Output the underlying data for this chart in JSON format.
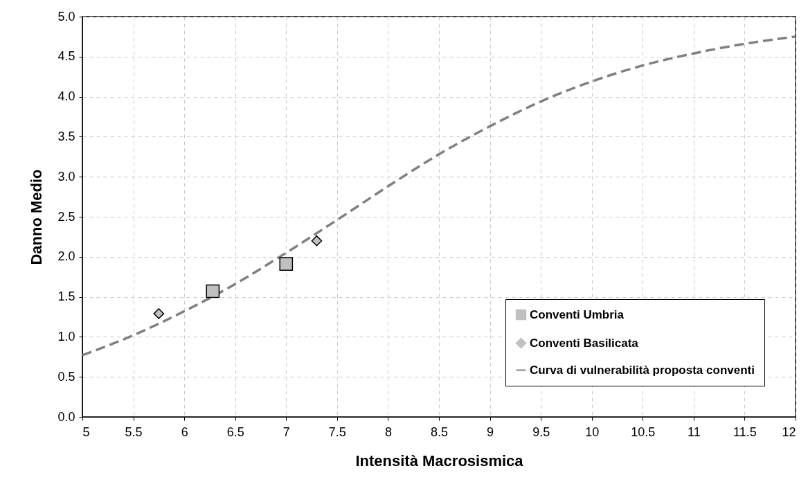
{
  "chart_data": {
    "type": "scatter",
    "xlabel": "Intensità Macrosismica",
    "ylabel": "Danno Medio",
    "xlim": [
      5,
      12
    ],
    "xticks": [
      5,
      5.5,
      6,
      6.5,
      7,
      7.5,
      8,
      8.5,
      9,
      9.5,
      10,
      10.5,
      11,
      11.5,
      12
    ],
    "ylim": [
      0,
      5
    ],
    "yticks": [
      {
        "value": 0,
        "label": "0.0"
      },
      0.5,
      {
        "value": 1,
        "label": "1.0"
      },
      1.5,
      {
        "value": 2,
        "label": "2.0"
      },
      2.5,
      {
        "value": 3,
        "label": "3.0"
      },
      3.5,
      {
        "value": 4,
        "label": "4.0"
      },
      4.5,
      {
        "value": 5,
        "label": "5.0"
      }
    ],
    "grid": true,
    "legend": "bottom right",
    "series": [
      {
        "name": "Conventi Umbria",
        "type": "scatter",
        "marker": "square",
        "color": "#c0c0c0",
        "x": [
          6.28,
          7.0
        ],
        "values": [
          1.57,
          1.91
        ]
      },
      {
        "name": "Conventi Basilicata",
        "type": "scatter",
        "marker": "diamond",
        "color": "#c0c0c0",
        "x": [
          5.75,
          7.3
        ],
        "values": [
          1.29,
          2.2
        ]
      },
      {
        "name": "Curva di vulnerabilità proposta conventi",
        "type": "line",
        "line_style": "dashed",
        "marker": "none",
        "color": "#808080",
        "x": [
          5,
          5.5,
          6,
          6.5,
          7,
          7.5,
          8,
          8.5,
          9,
          9.5,
          10,
          10.5,
          11,
          11.5,
          12
        ],
        "values": [
          0.77,
          1.02,
          1.32,
          1.66,
          2.05,
          2.46,
          2.88,
          3.28,
          3.63,
          3.94,
          4.19,
          4.39,
          4.54,
          4.66,
          4.75
        ]
      }
    ]
  }
}
